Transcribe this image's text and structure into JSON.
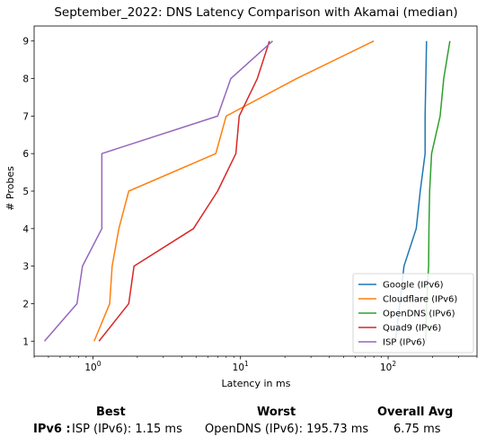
{
  "chart_data": {
    "type": "line",
    "title": "September_2022: DNS Latency Comparison with Akamai (median)",
    "xlabel": "Latency in ms",
    "ylabel": "# Probes",
    "xscale": "log",
    "xlim": [
      0.4,
      400
    ],
    "ylim": [
      0.6,
      9.4
    ],
    "xticks": [
      {
        "value": 1,
        "label": "10^0"
      },
      {
        "value": 10,
        "label": "10^1"
      },
      {
        "value": 100,
        "label": "10^2"
      }
    ],
    "yticks": [
      1,
      2,
      3,
      4,
      5,
      6,
      7,
      8,
      9
    ],
    "grid": false,
    "legend_position": "lower-right",
    "series": [
      {
        "name": "Google (IPv6)",
        "color": "#1f77b4",
        "points": [
          [
            112,
            1
          ],
          [
            120,
            2
          ],
          [
            128,
            3
          ],
          [
            155,
            4
          ],
          [
            165,
            5
          ],
          [
            178,
            6
          ],
          [
            178,
            7
          ],
          [
            180,
            8
          ],
          [
            182,
            9
          ]
        ]
      },
      {
        "name": "Cloudflare (IPv6)",
        "color": "#ff7f0e",
        "points": [
          [
            1.02,
            1
          ],
          [
            1.3,
            2
          ],
          [
            1.35,
            3
          ],
          [
            1.5,
            4
          ],
          [
            1.75,
            5
          ],
          [
            6.8,
            6
          ],
          [
            8.0,
            7
          ],
          [
            24,
            8
          ],
          [
            80,
            9
          ]
        ]
      },
      {
        "name": "OpenDNS (IPv6)",
        "color": "#2ca02c",
        "points": [
          [
            180,
            1
          ],
          [
            182,
            2
          ],
          [
            188,
            3
          ],
          [
            189,
            4
          ],
          [
            191,
            5
          ],
          [
            197,
            6
          ],
          [
            225,
            7
          ],
          [
            238,
            8
          ],
          [
            262,
            9
          ]
        ]
      },
      {
        "name": "Quad9 (IPv6)",
        "color": "#d62728",
        "points": [
          [
            1.1,
            1
          ],
          [
            1.75,
            2
          ],
          [
            1.9,
            3
          ],
          [
            4.8,
            4
          ],
          [
            7.0,
            5
          ],
          [
            9.3,
            6
          ],
          [
            9.8,
            7
          ],
          [
            13,
            8
          ],
          [
            15.7,
            9
          ]
        ]
      },
      {
        "name": "ISP (IPv6)",
        "color": "#9467bd",
        "points": [
          [
            0.47,
            1
          ],
          [
            0.78,
            2
          ],
          [
            0.85,
            3
          ],
          [
            1.15,
            4
          ],
          [
            1.15,
            5
          ],
          [
            1.15,
            6
          ],
          [
            7.0,
            7
          ],
          [
            8.6,
            8
          ],
          [
            16.5,
            9
          ]
        ]
      }
    ]
  },
  "summary": {
    "headers": {
      "best": "Best",
      "worst": "Worst",
      "avg": "Overall Avg"
    },
    "row_label": "IPv6 :",
    "best": "ISP (IPv6): 1.15 ms",
    "worst": "OpenDNS (IPv6): 195.73 ms",
    "avg": "6.75 ms"
  }
}
